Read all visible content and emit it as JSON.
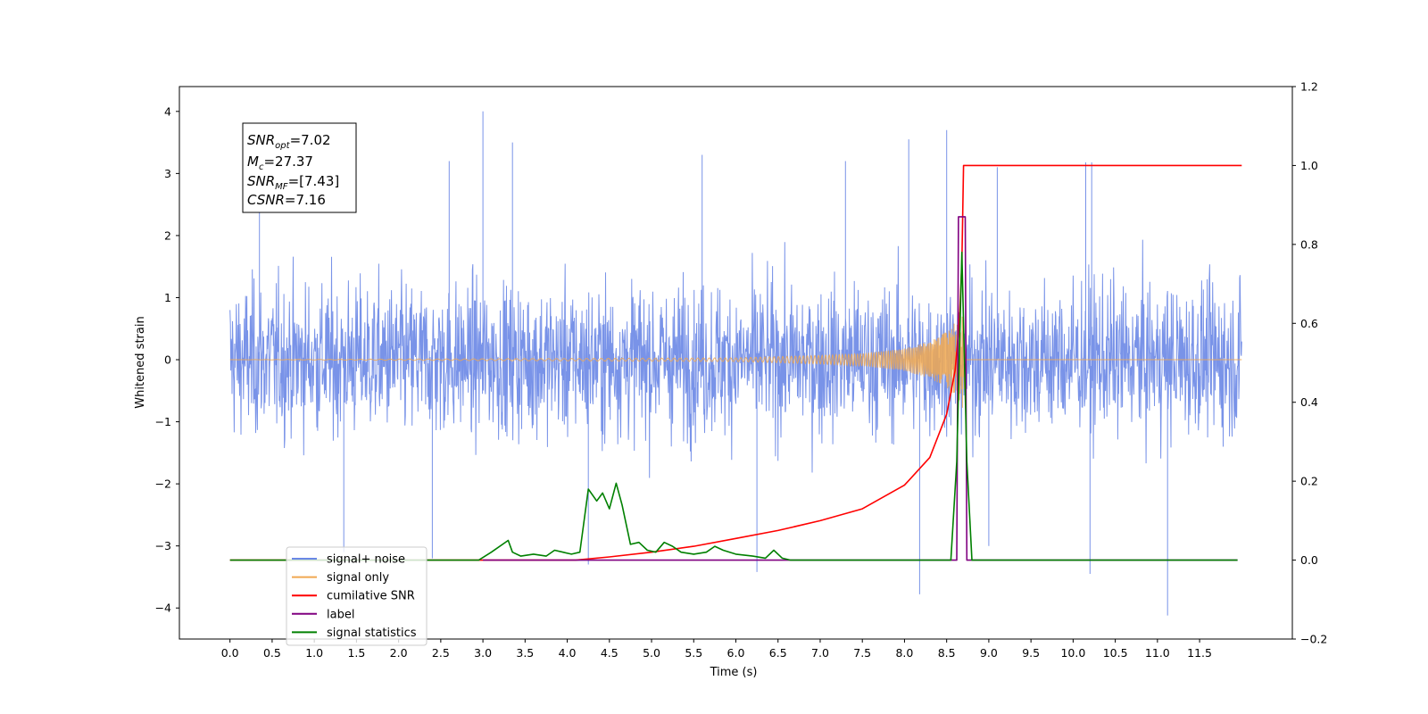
{
  "chart_data": {
    "type": "line",
    "xlabel": "Time (s)",
    "ylabel": "Whitened strain",
    "xlim": [
      -0.6,
      12.6
    ],
    "ylim": [
      -4.5,
      4.4
    ],
    "ylim_right": [
      -0.2,
      1.2
    ],
    "x_ticks": [
      "0.0",
      "0.5",
      "1.0",
      "1.5",
      "2.0",
      "2.5",
      "3.0",
      "3.5",
      "4.0",
      "4.5",
      "5.0",
      "5.5",
      "6.0",
      "6.5",
      "7.0",
      "7.5",
      "8.0",
      "8.5",
      "9.0",
      "9.5",
      "10.0",
      "10.5",
      "11.0",
      "11.5"
    ],
    "y_ticks_left": [
      "−4",
      "−3",
      "−2",
      "−1",
      "0",
      "1",
      "2",
      "3",
      "4"
    ],
    "y_ticks_right": [
      "−0.2",
      "0.0",
      "0.2",
      "0.4",
      "0.6",
      "0.8",
      "1.0",
      "1.2"
    ],
    "legend_location": "lower-left",
    "annotation": {
      "snr_opt_base": "SNR",
      "snr_opt_sub": "opt",
      "snr_opt_value": "=7.02",
      "mc_base": "M",
      "mc_sub": "c",
      "mc_value": "=27.37",
      "snr_mf_base": "SNR",
      "snr_mf_sub": "MF",
      "snr_mf_value": "=[7.43]",
      "csnr_base": "CSNR",
      "csnr_value": "=7.16"
    },
    "series": [
      {
        "name": "signal+ noise",
        "color": "#6a87e6",
        "axis": "left",
        "x_range": [
          0.0,
          12.0
        ],
        "typical_band": [
          -1.8,
          1.8
        ],
        "spikes": [
          [
            3.0,
            4.0
          ],
          [
            3.35,
            3.5
          ],
          [
            8.5,
            3.7
          ],
          [
            8.18,
            -3.78
          ],
          [
            10.2,
            -3.45
          ],
          [
            11.12,
            -4.12
          ],
          [
            6.25,
            -3.42
          ],
          [
            1.35,
            -3.1
          ],
          [
            10.15,
            3.18
          ],
          [
            10.22,
            3.18
          ],
          [
            8.05,
            3.55
          ],
          [
            4.25,
            -3.3
          ],
          [
            2.4,
            -3.2
          ],
          [
            0.35,
            3.1
          ],
          [
            7.3,
            3.2
          ],
          [
            5.6,
            3.3
          ],
          [
            9.1,
            3.1
          ],
          [
            9.0,
            -3.0
          ],
          [
            2.6,
            3.2
          ]
        ]
      },
      {
        "name": "signal only",
        "color": "#f0a850",
        "axis": "left",
        "x": [
          0,
          6.0,
          7.0,
          7.5,
          8.0,
          8.3,
          8.5,
          8.6,
          8.7,
          8.72,
          12.0
        ],
        "envelope": [
          0.0,
          0.03,
          0.07,
          0.1,
          0.18,
          0.3,
          0.45,
          0.6,
          0.8,
          0.0,
          0.0
        ]
      },
      {
        "name": "cumilative SNR",
        "color": "#ff0000",
        "axis": "right",
        "x": [
          0,
          4.1,
          4.5,
          5.0,
          5.5,
          6.0,
          6.5,
          7.0,
          7.5,
          8.0,
          8.3,
          8.5,
          8.6,
          8.65,
          8.68,
          8.7,
          12.0
        ],
        "values": [
          0.0,
          0.0,
          0.008,
          0.02,
          0.035,
          0.055,
          0.075,
          0.1,
          0.13,
          0.19,
          0.26,
          0.37,
          0.48,
          0.6,
          0.75,
          1.0,
          1.0
        ]
      },
      {
        "name": "label",
        "color": "#800080",
        "axis": "right",
        "x": [
          3.0,
          8.62,
          8.64,
          8.72,
          8.74,
          11.95
        ],
        "values": [
          0.0,
          0.0,
          0.87,
          0.87,
          0.0,
          0.0
        ]
      },
      {
        "name": "signal statistics",
        "color": "#008000",
        "axis": "right",
        "x": [
          0,
          2.95,
          3.1,
          3.3,
          3.35,
          3.45,
          3.6,
          3.75,
          3.85,
          3.95,
          4.05,
          4.15,
          4.25,
          4.35,
          4.42,
          4.5,
          4.58,
          4.65,
          4.75,
          4.85,
          4.95,
          5.05,
          5.15,
          5.25,
          5.35,
          5.5,
          5.65,
          5.75,
          5.85,
          6.0,
          6.2,
          6.35,
          6.45,
          6.55,
          6.65,
          8.55,
          8.62,
          8.68,
          8.74,
          8.8,
          9.2,
          11.95
        ],
        "values": [
          0.0,
          0.0,
          0.02,
          0.05,
          0.02,
          0.01,
          0.015,
          0.01,
          0.025,
          0.02,
          0.015,
          0.02,
          0.18,
          0.15,
          0.17,
          0.13,
          0.195,
          0.14,
          0.04,
          0.045,
          0.025,
          0.02,
          0.045,
          0.035,
          0.02,
          0.015,
          0.02,
          0.035,
          0.025,
          0.015,
          0.01,
          0.005,
          0.025,
          0.005,
          0.0,
          0.0,
          0.25,
          0.78,
          0.25,
          0.0,
          0.0,
          0.0
        ]
      }
    ]
  }
}
